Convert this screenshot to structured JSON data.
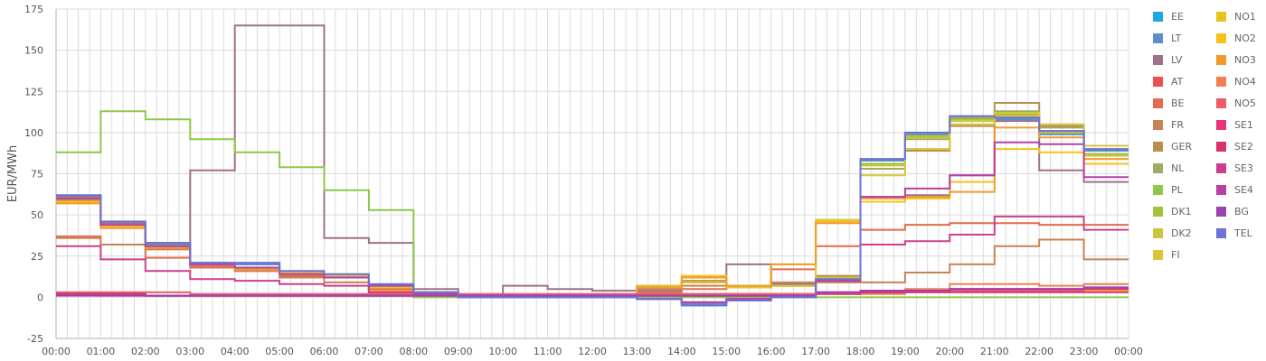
{
  "chart_data": {
    "type": "line",
    "step": true,
    "ylabel": "EUR/MWh",
    "xlabel": "",
    "ylim": [
      -25,
      175
    ],
    "yticks": [
      -25,
      0,
      25,
      50,
      75,
      100,
      125,
      150,
      175
    ],
    "x_ticks": [
      "00:00",
      "01:00",
      "02:00",
      "03:00",
      "04:00",
      "05:00",
      "06:00",
      "07:00",
      "08:00",
      "09:00",
      "10:00",
      "11:00",
      "12:00",
      "13:00",
      "14:00",
      "15:00",
      "16:00",
      "17:00",
      "18:00",
      "19:00",
      "20:00",
      "21:00",
      "22:00",
      "23:00",
      "00:00"
    ],
    "minor_gridlines": true,
    "legend_position": "right",
    "series": [
      {
        "name": "EE",
        "color": "#1ea7e1",
        "values": [
          61,
          45,
          32,
          21,
          20,
          15,
          13,
          7,
          2,
          0,
          0,
          0,
          0,
          -1,
          -4,
          -1,
          0,
          11,
          83,
          99,
          109,
          108,
          99,
          89
        ]
      },
      {
        "name": "LT",
        "color": "#5b8fc7",
        "values": [
          61,
          45,
          32,
          21,
          20,
          15,
          13,
          7,
          2,
          0,
          0,
          0,
          0,
          -1,
          -4,
          -1,
          0,
          11,
          83,
          99,
          109,
          108,
          99,
          89
        ]
      },
      {
        "name": "LV",
        "color": "#a06f8c",
        "values": [
          61,
          45,
          33,
          77,
          165,
          165,
          36,
          33,
          5,
          1,
          7,
          5,
          4,
          4,
          9,
          20,
          8,
          10,
          61,
          62,
          74,
          107,
          77,
          70
        ]
      },
      {
        "name": "AT",
        "color": "#ec4f4f",
        "values": [
          2,
          2,
          1,
          1,
          1,
          1,
          1,
          1,
          1,
          1,
          1,
          1,
          1,
          1,
          1,
          1,
          1,
          3,
          4,
          4,
          5,
          5,
          5,
          5
        ]
      },
      {
        "name": "BE",
        "color": "#e36b4b",
        "values": [
          37,
          32,
          24,
          18,
          16,
          13,
          12,
          5,
          3,
          1,
          1,
          1,
          1,
          3,
          5,
          6,
          17,
          31,
          41,
          44,
          45,
          45,
          44,
          44
        ]
      },
      {
        "name": "FR",
        "color": "#c98255",
        "values": [
          36,
          32,
          29,
          19,
          16,
          12,
          9,
          3,
          2,
          1,
          1,
          1,
          1,
          5,
          7,
          7,
          9,
          9,
          9,
          15,
          20,
          31,
          35,
          23
        ]
      },
      {
        "name": "GER",
        "color": "#b98f4c",
        "values": [
          59,
          44,
          30,
          20,
          18,
          15,
          13,
          4,
          3,
          1,
          1,
          1,
          1,
          7,
          10,
          6,
          7,
          13,
          78,
          89,
          104,
          118,
          104,
          86
        ]
      },
      {
        "name": "NL",
        "color": "#a3aa62",
        "values": [
          60,
          44,
          31,
          20,
          18,
          15,
          12,
          4,
          3,
          1,
          1,
          1,
          1,
          7,
          9,
          6,
          7,
          12,
          78,
          96,
          109,
          113,
          103,
          87
        ]
      },
      {
        "name": "PL",
        "color": "#8cc94a",
        "values": [
          88,
          113,
          108,
          96,
          88,
          79,
          65,
          53,
          0,
          0,
          0,
          0,
          0,
          0,
          0,
          0,
          0,
          0,
          0,
          0,
          0,
          0,
          0,
          0
        ]
      },
      {
        "name": "DK1",
        "color": "#a2c23b",
        "values": [
          60,
          44,
          31,
          20,
          18,
          15,
          12,
          4,
          3,
          1,
          1,
          1,
          1,
          7,
          9,
          6,
          7,
          12,
          81,
          98,
          108,
          111,
          101,
          87
        ]
      },
      {
        "name": "DK2",
        "color": "#c9c53c",
        "values": [
          60,
          44,
          31,
          20,
          18,
          15,
          12,
          4,
          3,
          1,
          1,
          1,
          1,
          7,
          9,
          6,
          7,
          12,
          80,
          97,
          107,
          110,
          100,
          86
        ]
      },
      {
        "name": "FI",
        "color": "#d8c53c",
        "values": [
          60,
          44,
          31,
          20,
          18,
          15,
          13,
          6,
          3,
          1,
          1,
          1,
          1,
          7,
          9,
          6,
          7,
          47,
          74,
          90,
          105,
          112,
          105,
          92
        ]
      },
      {
        "name": "NO1",
        "color": "#e3c51e",
        "values": [
          2,
          2,
          1,
          1,
          1,
          1,
          1,
          1,
          1,
          1,
          1,
          1,
          1,
          1,
          2,
          2,
          2,
          2,
          3,
          3,
          4,
          4,
          4,
          4
        ]
      },
      {
        "name": "NO2",
        "color": "#f7c11a",
        "values": [
          58,
          43,
          31,
          20,
          17,
          14,
          12,
          4,
          2,
          1,
          1,
          1,
          1,
          6,
          13,
          7,
          20,
          46,
          58,
          60,
          70,
          90,
          88,
          81
        ]
      },
      {
        "name": "NO3",
        "color": "#f39a2a",
        "values": [
          57,
          42,
          30,
          20,
          17,
          14,
          12,
          4,
          2,
          1,
          1,
          1,
          1,
          6,
          12,
          7,
          20,
          45,
          60,
          61,
          64,
          103,
          97,
          84
        ]
      },
      {
        "name": "NO4",
        "color": "#f47d4f",
        "values": [
          2,
          1,
          1,
          1,
          1,
          1,
          1,
          1,
          1,
          1,
          1,
          1,
          1,
          2,
          2,
          2,
          2,
          2,
          2,
          5,
          8,
          8,
          7,
          8
        ]
      },
      {
        "name": "NO5",
        "color": "#ee5c6a",
        "values": [
          3,
          3,
          3,
          2,
          2,
          2,
          2,
          2,
          2,
          2,
          2,
          2,
          2,
          2,
          2,
          2,
          2,
          3,
          4,
          4,
          4,
          4,
          4,
          5
        ]
      },
      {
        "name": "SE1",
        "color": "#e8327a",
        "values": [
          2,
          2,
          1,
          1,
          1,
          1,
          1,
          1,
          1,
          1,
          1,
          1,
          1,
          1,
          1,
          1,
          1,
          2,
          3,
          3,
          3,
          3,
          3,
          3
        ]
      },
      {
        "name": "SE2",
        "color": "#d6346f",
        "values": [
          2,
          2,
          1,
          1,
          1,
          1,
          1,
          1,
          1,
          1,
          1,
          1,
          1,
          1,
          1,
          1,
          1,
          3,
          3,
          4,
          5,
          5,
          5,
          5
        ]
      },
      {
        "name": "SE3",
        "color": "#cc3f8e",
        "values": [
          31,
          23,
          16,
          11,
          10,
          8,
          7,
          3,
          2,
          1,
          1,
          1,
          1,
          -1,
          -3,
          -1,
          1,
          10,
          32,
          34,
          38,
          49,
          49,
          41
        ]
      },
      {
        "name": "SE4",
        "color": "#b83fa6",
        "values": [
          60,
          44,
          31,
          20,
          18,
          14,
          12,
          7,
          2,
          0,
          0,
          0,
          0,
          -1,
          -3,
          -1,
          1,
          10,
          61,
          66,
          74,
          94,
          93,
          73
        ]
      },
      {
        "name": "BG",
        "color": "#9a44b3",
        "values": [
          1,
          1,
          1,
          1,
          1,
          1,
          1,
          1,
          1,
          1,
          1,
          1,
          1,
          1,
          1,
          1,
          1,
          3,
          4,
          4,
          5,
          5,
          5,
          6
        ]
      },
      {
        "name": "TEL",
        "color": "#6c72d6",
        "values": [
          62,
          46,
          33,
          21,
          21,
          16,
          14,
          8,
          3,
          0,
          0,
          0,
          0,
          -1,
          -5,
          -2,
          0,
          11,
          84,
          100,
          110,
          109,
          101,
          90
        ]
      }
    ]
  }
}
